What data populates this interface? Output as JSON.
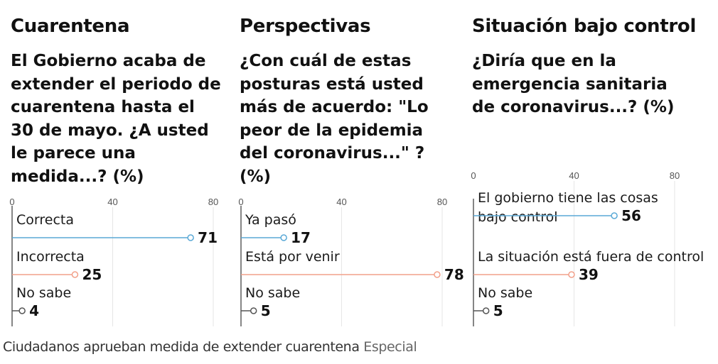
{
  "caption": {
    "text": "Ciudadanos aprueban medida de extender cuarentena",
    "credit": "Especial"
  },
  "colors": {
    "series": [
      "#5aa9d6",
      "#f2a08a",
      "#555555"
    ],
    "grid": "#e6e6e6",
    "axis": "#444444",
    "text": "#1a1a1a"
  },
  "chart_data": [
    {
      "type": "bar",
      "title": "Cuarentena",
      "question": [
        "El Gobierno acaba de",
        "extender el periodo de",
        "cuarentena hasta el",
        "30 de mayo. ¿A usted",
        "le parece una",
        "medida...?  (%)"
      ],
      "categories": [
        [
          "Correcta"
        ],
        [
          "Incorrecta"
        ],
        [
          "No sabe"
        ]
      ],
      "values": [
        71,
        25,
        4
      ],
      "xlim": [
        0,
        80
      ],
      "ticks": [
        0,
        40,
        80
      ],
      "grid": true
    },
    {
      "type": "bar",
      "title": "Perspectivas",
      "question": [
        "¿Con cuál de estas",
        "posturas está usted",
        "más de acuerdo: \"Lo",
        "peor de la epidemia",
        "del coronavirus...\" ?",
        "(%)"
      ],
      "categories": [
        [
          "Ya pasó"
        ],
        [
          "Está por venir"
        ],
        [
          "No sabe"
        ]
      ],
      "values": [
        17,
        78,
        5
      ],
      "xlim": [
        0,
        80
      ],
      "ticks": [
        0,
        40,
        80
      ],
      "grid": true
    },
    {
      "type": "bar",
      "title": "Situación bajo control",
      "question": [
        "¿Diría que en la",
        "emergencia sanitaria",
        "de coronavirus...?  (%)"
      ],
      "categories": [
        [
          "El gobierno tiene las cosas",
          "bajo control"
        ],
        [
          "La situación está fuera de control"
        ],
        [
          "No sabe"
        ]
      ],
      "values": [
        56,
        39,
        5
      ],
      "xlim": [
        0,
        80
      ],
      "ticks": [
        0,
        40,
        80
      ],
      "grid": true
    }
  ]
}
